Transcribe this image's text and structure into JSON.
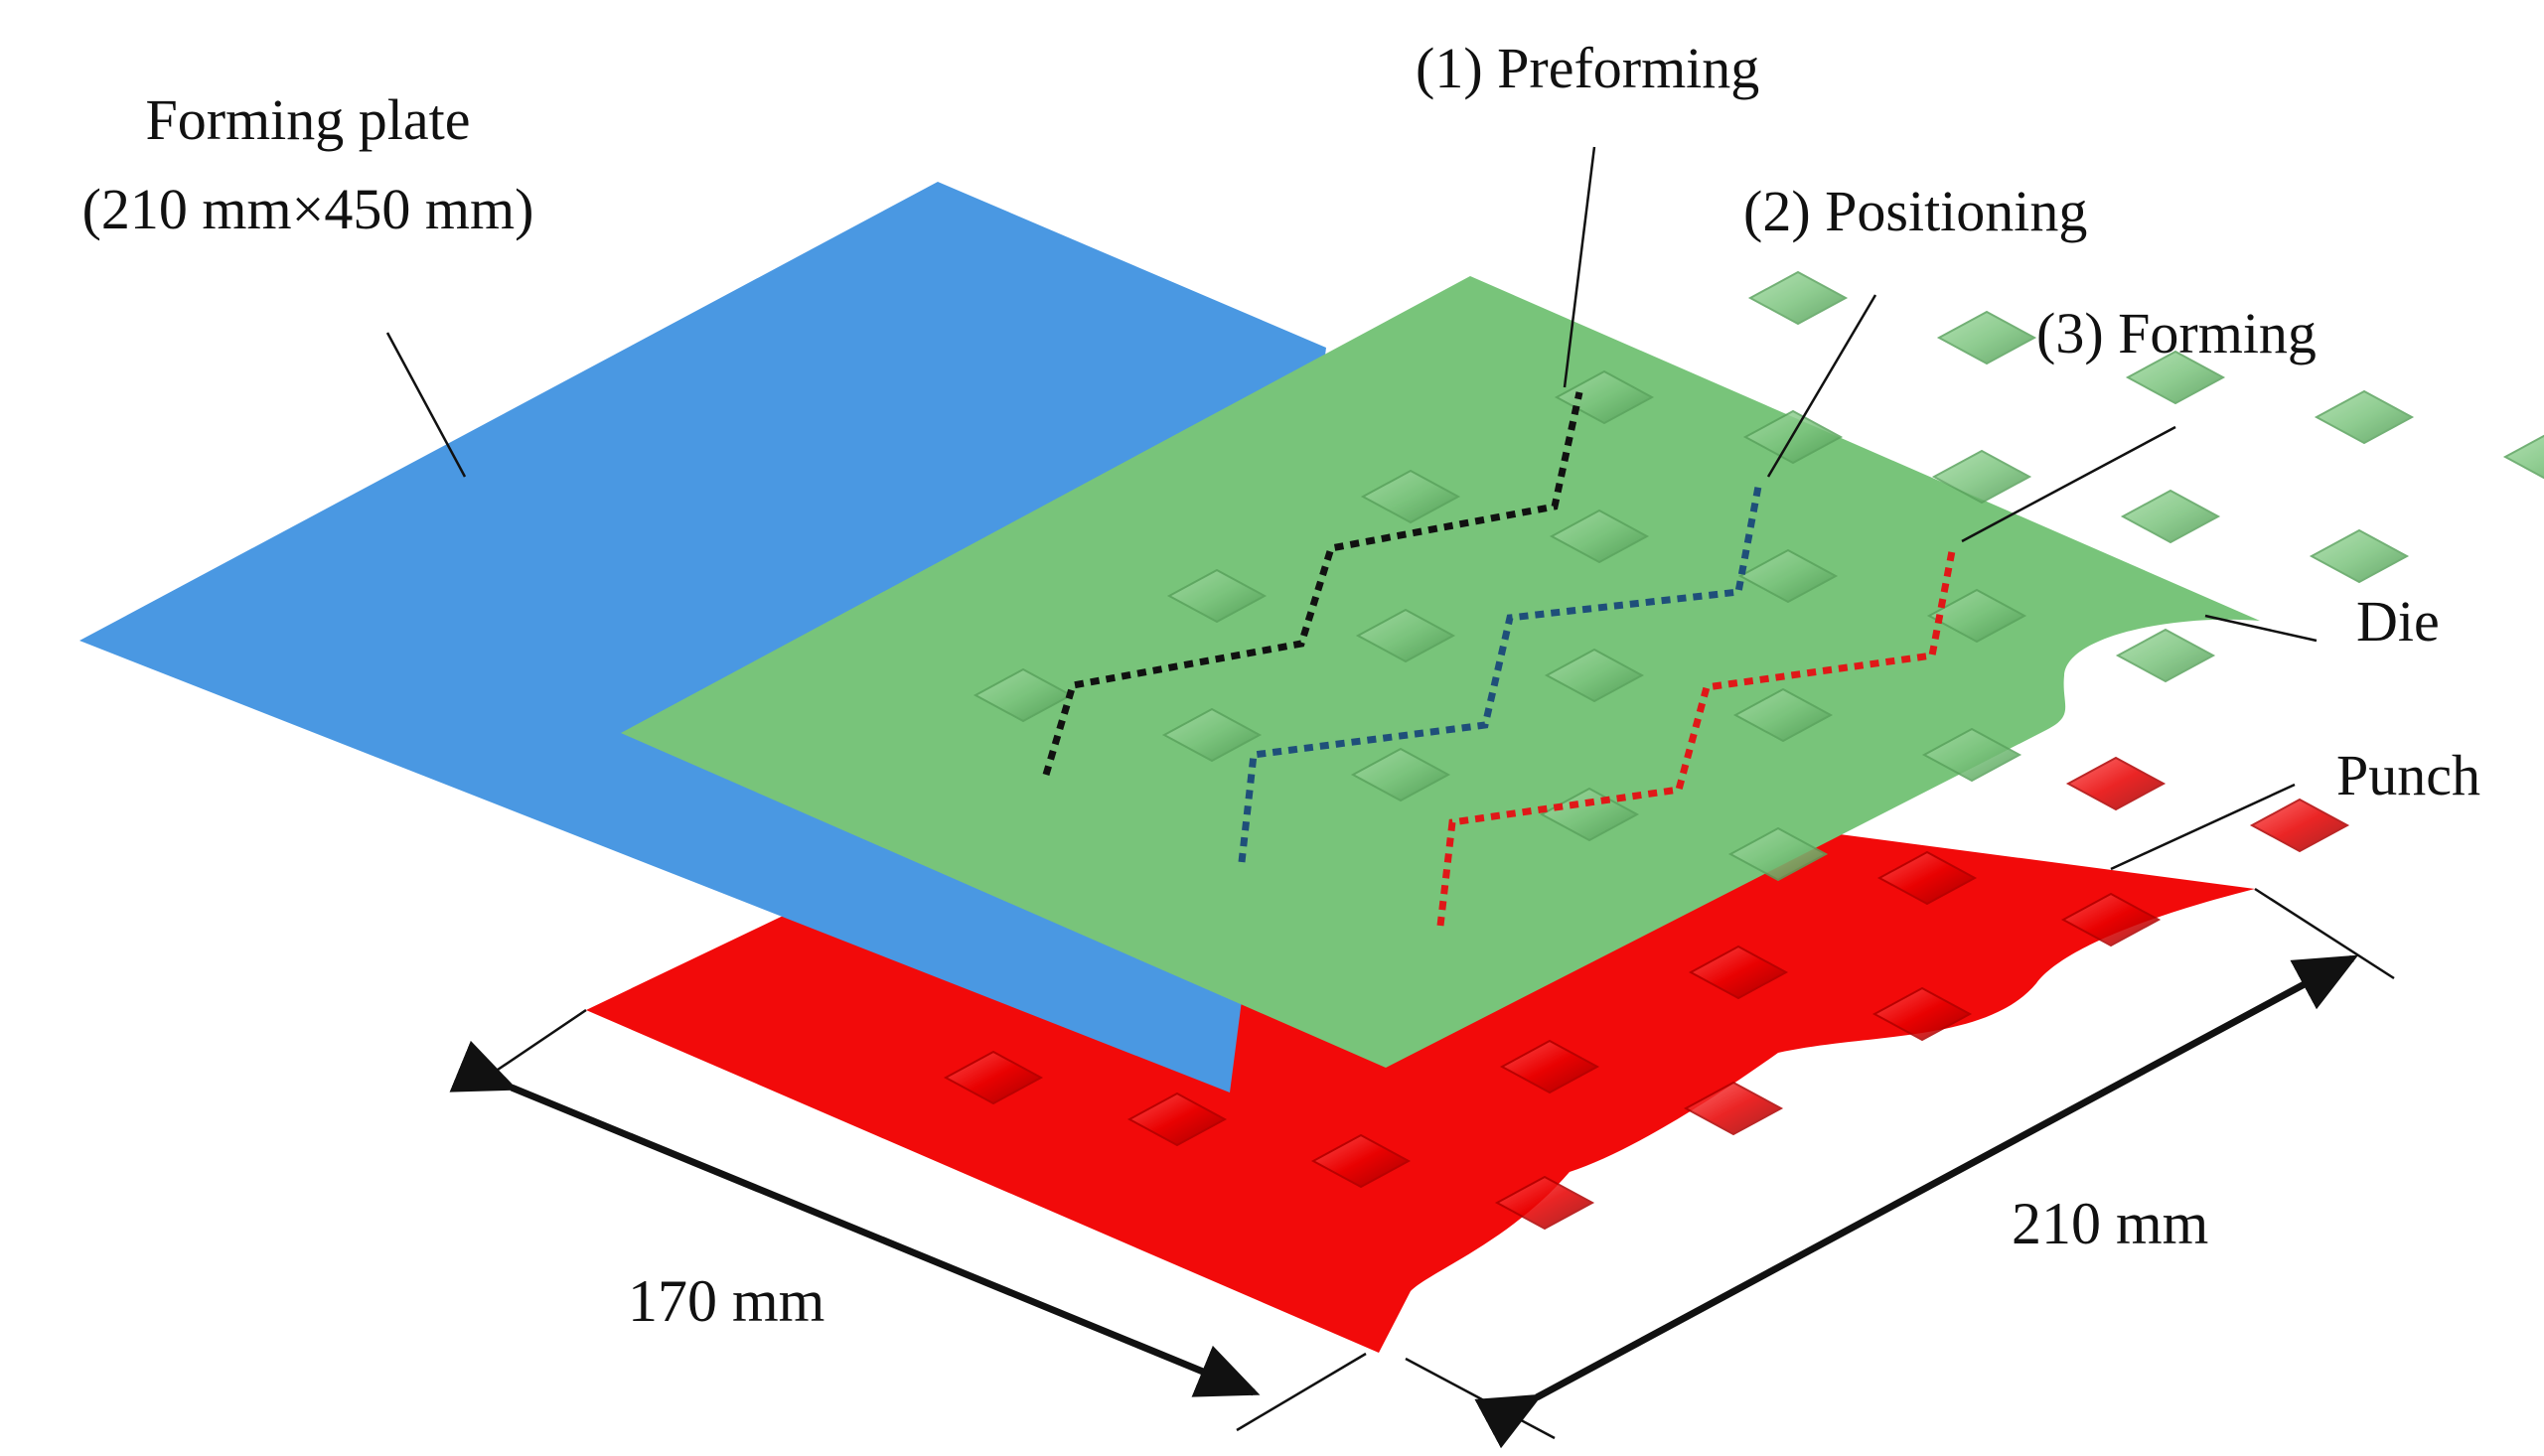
{
  "labels": {
    "plate_line1": "Forming plate",
    "plate_line2": "(210 mm×450 mm)",
    "preforming": "(1) Preforming",
    "positioning": "(2) Positioning",
    "forming": "(3) Forming",
    "die": "Die",
    "punch": "Punch",
    "dim_170": "170 mm",
    "dim_210": "210 mm"
  },
  "colors": {
    "forming_plate": "#4a98e2",
    "die": "#78c47a",
    "punch": "#f20a0a",
    "path_preforming": "#111111",
    "path_positioning": "#1f4f7a",
    "path_forming": "#e01818"
  }
}
